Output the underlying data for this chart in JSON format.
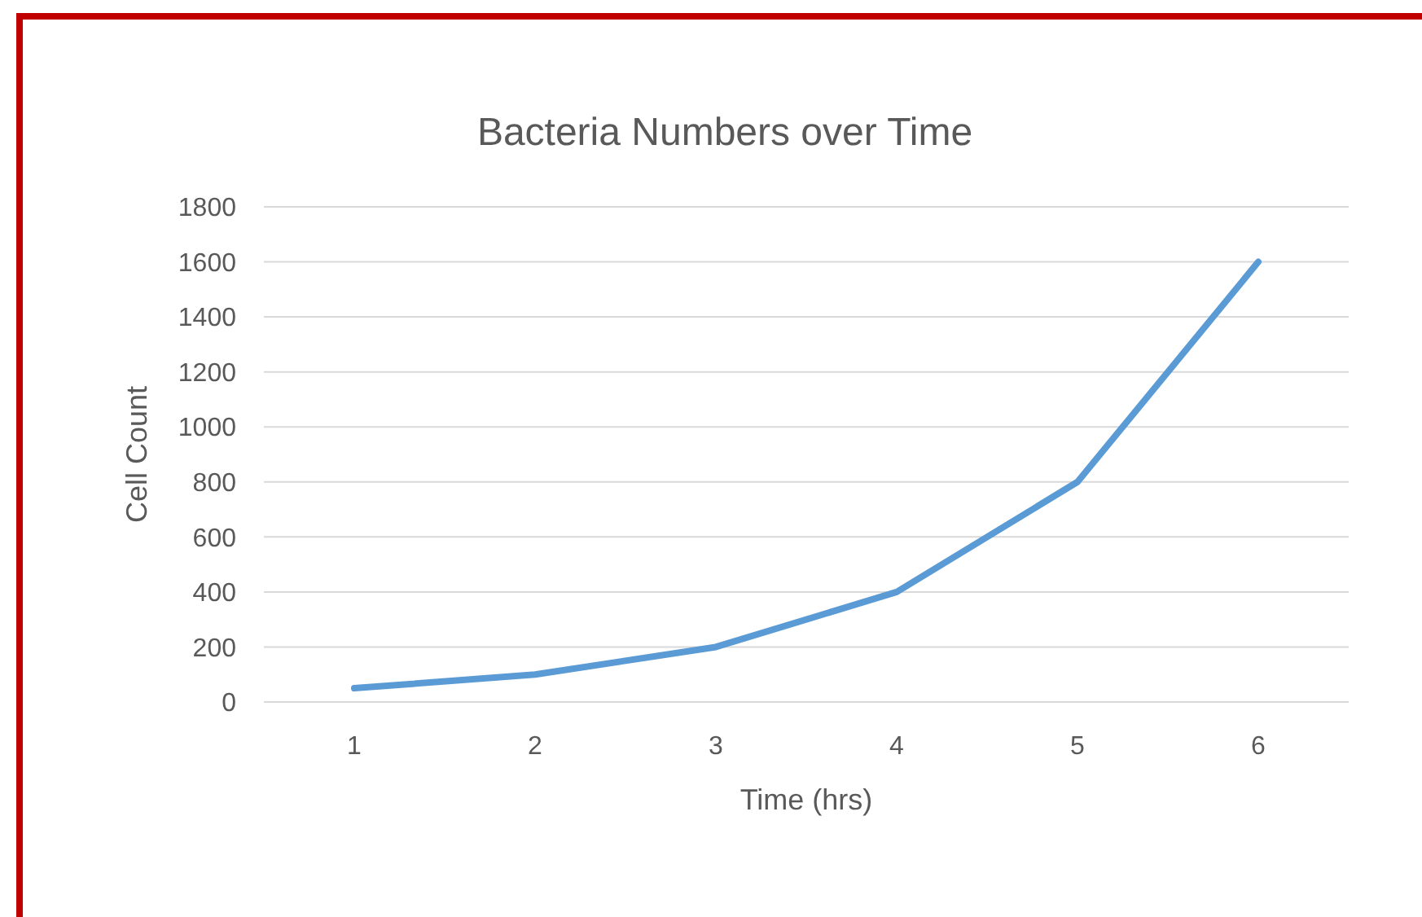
{
  "chart_data": {
    "type": "line",
    "title": "Bacteria Numbers over Time",
    "xlabel": "Time (hrs)",
    "ylabel": "Cell Count",
    "categories": [
      "1",
      "2",
      "3",
      "4",
      "5",
      "6"
    ],
    "series": [
      {
        "color": "#5b9bd5",
        "values": [
          50,
          100,
          200,
          400,
          800,
          1600
        ]
      }
    ],
    "ylim": [
      0,
      1800
    ],
    "yticks": [
      0,
      200,
      400,
      600,
      800,
      1000,
      1200,
      1400,
      1600,
      1800
    ],
    "grid": "y",
    "marker": "none",
    "line_style": "solid"
  }
}
